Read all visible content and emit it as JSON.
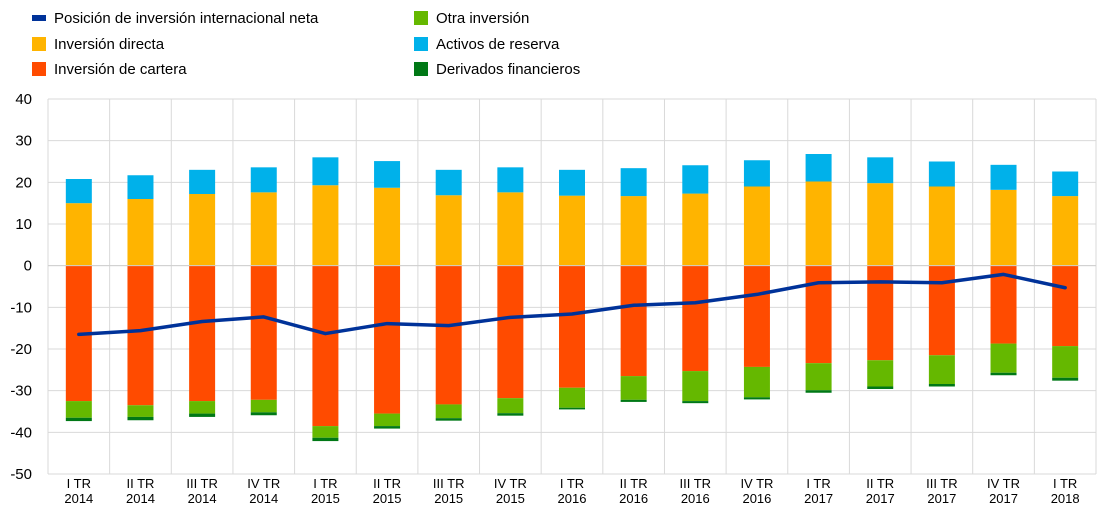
{
  "chart_data": {
    "type": "bar",
    "stacked": true,
    "title": "",
    "xlabel": "",
    "ylabel": "",
    "ylim": [
      -50,
      40
    ],
    "yticks": [
      40,
      30,
      20,
      10,
      0,
      -10,
      -20,
      -30,
      -40,
      -50
    ],
    "grid": true,
    "legend_position": "top-left",
    "categories": [
      [
        "I TR",
        "2014"
      ],
      [
        "II TR",
        "2014"
      ],
      [
        "III TR",
        "2014"
      ],
      [
        "IV TR",
        "2014"
      ],
      [
        "I TR",
        "2015"
      ],
      [
        "II TR",
        "2015"
      ],
      [
        "III TR",
        "2015"
      ],
      [
        "IV TR",
        "2015"
      ],
      [
        "I TR",
        "2016"
      ],
      [
        "II TR",
        "2016"
      ],
      [
        "III TR",
        "2016"
      ],
      [
        "IV TR",
        "2016"
      ],
      [
        "I TR",
        "2017"
      ],
      [
        "II TR",
        "2017"
      ],
      [
        "III TR",
        "2017"
      ],
      [
        "IV TR",
        "2017"
      ],
      [
        "I TR",
        "2018"
      ]
    ],
    "series": [
      {
        "name": "Inversión directa",
        "type": "bar",
        "color": "#FFB400",
        "values": [
          15.0,
          16.0,
          17.2,
          17.6,
          19.3,
          18.7,
          16.9,
          17.6,
          16.8,
          16.7,
          17.3,
          19.0,
          20.2,
          19.8,
          19.0,
          18.2,
          16.7
        ]
      },
      {
        "name": "Activos de reserva",
        "type": "bar",
        "color": "#00B1EA",
        "values": [
          5.8,
          5.7,
          5.8,
          6.0,
          6.7,
          6.4,
          6.1,
          6.0,
          6.2,
          6.7,
          6.8,
          6.3,
          6.6,
          6.2,
          6.0,
          6.0,
          5.9
        ]
      },
      {
        "name": "Inversión de cartera",
        "type": "bar",
        "color": "#FF4B00",
        "values": [
          -32.5,
          -33.5,
          -32.5,
          -32.2,
          -38.5,
          -35.5,
          -33.3,
          -31.8,
          -29.3,
          -26.5,
          -25.3,
          -24.3,
          -23.4,
          -22.7,
          -21.5,
          -18.7,
          -19.3
        ]
      },
      {
        "name": "Otra inversión",
        "type": "bar",
        "color": "#65B800",
        "values": [
          -4.0,
          -2.8,
          -3.0,
          -3.0,
          -2.8,
          -3.0,
          -3.3,
          -3.6,
          -4.8,
          -5.7,
          -7.2,
          -7.3,
          -6.5,
          -6.3,
          -6.9,
          -7.0,
          -7.6
        ]
      },
      {
        "name": "Derivados financieros",
        "type": "bar",
        "color": "#007816",
        "values": [
          -0.8,
          -0.8,
          -0.8,
          -0.7,
          -0.8,
          -0.6,
          -0.6,
          -0.6,
          -0.4,
          -0.5,
          -0.5,
          -0.5,
          -0.6,
          -0.6,
          -0.6,
          -0.6,
          -0.7
        ]
      },
      {
        "name": "Posición de inversión internacional neta",
        "type": "line",
        "color": "#003299",
        "values": [
          -16.5,
          -15.6,
          -13.4,
          -12.3,
          -16.3,
          -13.9,
          -14.4,
          -12.4,
          -11.6,
          -9.5,
          -8.9,
          -6.9,
          -4.1,
          -3.9,
          -4.1,
          -2.1,
          -5.3
        ]
      }
    ],
    "legend_order": [
      "Posición de inversión internacional neta",
      "Otra inversión",
      "Inversión directa",
      "Activos de reserva",
      "Inversión de cartera",
      "Derivados financieros"
    ]
  }
}
